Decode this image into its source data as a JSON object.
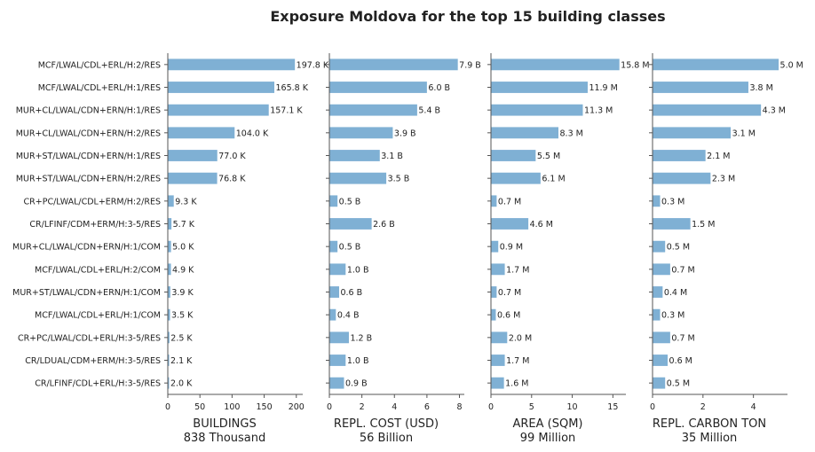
{
  "chart_data": {
    "type": "bar",
    "orientation": "horizontal",
    "title": "Exposure Moldova for the top 15 building classes",
    "bar_color": "#7fb0d4",
    "axis_color": "#555555",
    "grid": false,
    "categories": [
      "MCF/LWAL/CDL+ERL/H:2/RES",
      "MCF/LWAL/CDL+ERL/H:1/RES",
      "MUR+CL/LWAL/CDN+ERN/H:1/RES",
      "MUR+CL/LWAL/CDN+ERN/H:2/RES",
      "MUR+ST/LWAL/CDN+ERN/H:1/RES",
      "MUR+ST/LWAL/CDN+ERN/H:2/RES",
      "CR+PC/LWAL/CDL+ERM/H:2/RES",
      "CR/LFINF/CDM+ERM/H:3-5/RES",
      "MUR+CL/LWAL/CDN+ERN/H:1/COM",
      "MCF/LWAL/CDL+ERL/H:2/COM",
      "MUR+ST/LWAL/CDN+ERN/H:1/COM",
      "MCF/LWAL/CDL+ERL/H:1/COM",
      "CR+PC/LWAL/CDL+ERL/H:3-5/RES",
      "CR/LDUAL/CDM+ERM/H:3-5/RES",
      "CR/LFINF/CDL+ERL/H:3-5/RES"
    ],
    "panels": [
      {
        "xlabel": "BUILDINGS",
        "total": "838 Thousand",
        "xlim": [
          0,
          210
        ],
        "ticks": [
          0,
          50,
          100,
          150,
          200
        ],
        "tick_labels": [
          "0",
          "50",
          "100",
          "150",
          "200"
        ],
        "values": [
          197.8,
          165.8,
          157.1,
          104.0,
          77.0,
          76.8,
          9.3,
          5.7,
          5.0,
          4.9,
          3.9,
          3.5,
          2.5,
          2.1,
          2.0
        ],
        "labels": [
          "197.8 K",
          "165.8 K",
          "157.1 K",
          "104.0 K",
          "77.0 K",
          "76.8 K",
          "9.3 K",
          "5.7 K",
          "5.0 K",
          "4.9 K",
          "3.9 K",
          "3.5 K",
          "2.5 K",
          "2.1 K",
          "2.0 K"
        ]
      },
      {
        "xlabel": "REPL. COST (USD)",
        "total": "56 Billion",
        "xlim": [
          0,
          8.3
        ],
        "ticks": [
          0,
          2,
          4,
          6,
          8
        ],
        "tick_labels": [
          "0",
          "2",
          "4",
          "6",
          "8"
        ],
        "values": [
          7.9,
          6.0,
          5.4,
          3.9,
          3.1,
          3.5,
          0.5,
          2.6,
          0.5,
          1.0,
          0.6,
          0.4,
          1.2,
          1.0,
          0.9
        ],
        "labels": [
          "7.9 B",
          "6.0 B",
          "5.4 B",
          "3.9 B",
          "3.1 B",
          "3.5 B",
          "0.5 B",
          "2.6 B",
          "0.5 B",
          "1.0 B",
          "0.6 B",
          "0.4 B",
          "1.2 B",
          "1.0 B",
          "0.9 B"
        ]
      },
      {
        "xlabel": "AREA (SQM)",
        "total": "99 Million",
        "xlim": [
          0,
          16.6
        ],
        "ticks": [
          0,
          5,
          10,
          15
        ],
        "tick_labels": [
          "0",
          "5",
          "10",
          "15"
        ],
        "values": [
          15.8,
          11.9,
          11.3,
          8.3,
          5.5,
          6.1,
          0.7,
          4.6,
          0.9,
          1.7,
          0.7,
          0.6,
          2.0,
          1.7,
          1.6
        ],
        "labels": [
          "15.8 M",
          "11.9 M",
          "11.3 M",
          "8.3 M",
          "5.5 M",
          "6.1 M",
          "0.7 M",
          "4.6 M",
          "0.9 M",
          "1.7 M",
          "0.7 M",
          "0.6 M",
          "2.0 M",
          "1.7 M",
          "1.6 M"
        ]
      },
      {
        "xlabel": "REPL. CARBON TON",
        "total": "35 Million",
        "xlim": [
          0,
          5.35
        ],
        "ticks": [
          0,
          2,
          4
        ],
        "tick_labels": [
          "0",
          "2",
          "4"
        ],
        "values": [
          5.0,
          3.8,
          4.3,
          3.1,
          2.1,
          2.3,
          0.3,
          1.5,
          0.5,
          0.7,
          0.4,
          0.3,
          0.7,
          0.6,
          0.5
        ],
        "labels": [
          "5.0 M",
          "3.8 M",
          "4.3 M",
          "3.1 M",
          "2.1 M",
          "2.3 M",
          "0.3 M",
          "1.5 M",
          "0.5 M",
          "0.7 M",
          "0.4 M",
          "0.3 M",
          "0.7 M",
          "0.6 M",
          "0.5 M"
        ]
      }
    ]
  }
}
